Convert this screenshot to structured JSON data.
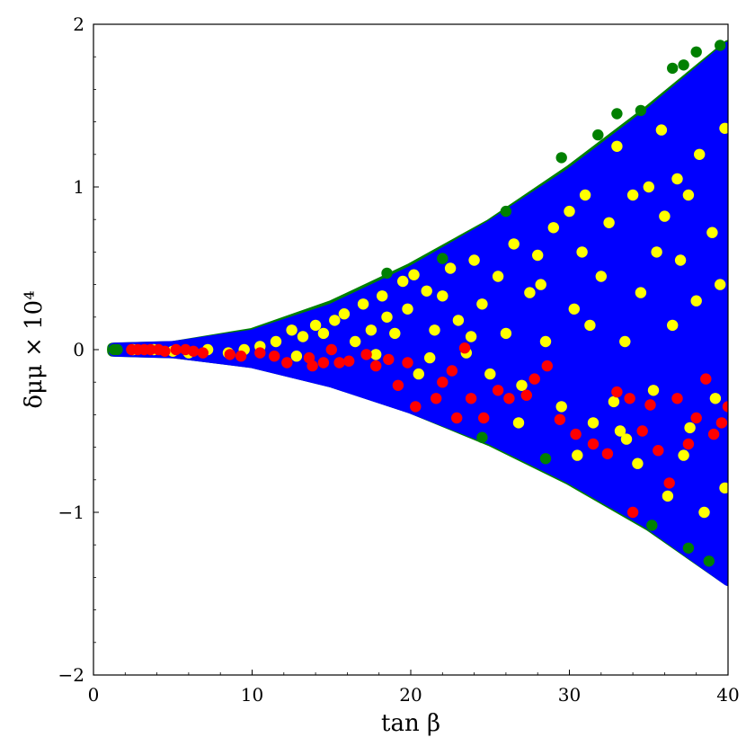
{
  "chart_data": {
    "type": "scatter",
    "xlabel": "tan β",
    "ylabel": "δμμ × 10⁴",
    "xlim": [
      0,
      40
    ],
    "ylim": [
      -2,
      2
    ],
    "x_ticks": [
      0,
      10,
      20,
      30,
      40
    ],
    "y_ticks": [
      -2,
      -1,
      0,
      1,
      2
    ],
    "x_tick_labels": [
      "0",
      "10",
      "20",
      "30",
      "40"
    ],
    "y_tick_labels": [
      "−2",
      "−1",
      "0",
      "1",
      "2"
    ],
    "grid": false,
    "legend": "none",
    "series": [
      {
        "color": "#008000",
        "envelope": true,
        "x_range": [
          1.2,
          40
        ],
        "upper_y_at_x": [
          [
            1.2,
            0.01
          ],
          [
            5,
            0.02
          ],
          [
            10,
            0.1
          ],
          [
            15,
            0.27
          ],
          [
            20,
            0.5
          ],
          [
            25,
            0.77
          ],
          [
            30,
            1.1
          ],
          [
            35,
            1.47
          ],
          [
            40,
            1.87
          ]
        ],
        "lower_y_at_x": [
          [
            1.2,
            -0.01
          ],
          [
            5,
            -0.02
          ],
          [
            10,
            -0.08
          ],
          [
            15,
            -0.2
          ],
          [
            20,
            -0.36
          ],
          [
            25,
            -0.56
          ],
          [
            30,
            -0.8
          ],
          [
            35,
            -1.08
          ],
          [
            40,
            -1.42
          ]
        ],
        "points": [
          [
            1.3,
            0.0
          ],
          [
            1.5,
            0.0
          ],
          [
            33.0,
            1.45
          ],
          [
            34.5,
            1.47
          ],
          [
            36.5,
            1.73
          ],
          [
            37.2,
            1.75
          ],
          [
            38.0,
            1.83
          ],
          [
            29.5,
            1.18
          ],
          [
            31.8,
            1.32
          ],
          [
            26.0,
            0.85
          ],
          [
            22.0,
            0.56
          ],
          [
            18.5,
            0.47
          ],
          [
            35.2,
            -1.08
          ],
          [
            37.5,
            -1.22
          ],
          [
            28.5,
            -0.67
          ],
          [
            24.5,
            -0.54
          ],
          [
            38.8,
            -1.3
          ],
          [
            39.5,
            1.87
          ]
        ]
      },
      {
        "color": "#0000ff",
        "envelope": true,
        "x_range": [
          1.3,
          40
        ],
        "upper_y_at_x": [
          [
            1.3,
            0.01
          ],
          [
            5,
            0.02
          ],
          [
            10,
            0.09
          ],
          [
            15,
            0.25
          ],
          [
            20,
            0.48
          ],
          [
            25,
            0.76
          ],
          [
            30,
            1.08
          ],
          [
            35,
            1.45
          ],
          [
            40,
            1.86
          ]
        ],
        "lower_y_at_x": [
          [
            1.3,
            -0.01
          ],
          [
            5,
            -0.02
          ],
          [
            10,
            -0.08
          ],
          [
            15,
            -0.2
          ],
          [
            20,
            -0.36
          ],
          [
            25,
            -0.55
          ],
          [
            30,
            -0.79
          ],
          [
            35,
            -1.07
          ],
          [
            40,
            -1.42
          ]
        ],
        "points": []
      },
      {
        "color": "#ffff00",
        "points": [
          [
            2.5,
            0.0
          ],
          [
            3.8,
            0.0
          ],
          [
            5.0,
            -0.01
          ],
          [
            6.0,
            -0.02
          ],
          [
            7.2,
            0.0
          ],
          [
            8.5,
            -0.02
          ],
          [
            9.5,
            0.0
          ],
          [
            10.5,
            0.02
          ],
          [
            11.5,
            0.05
          ],
          [
            12.5,
            0.12
          ],
          [
            12.8,
            -0.04
          ],
          [
            13.2,
            0.08
          ],
          [
            14.0,
            0.15
          ],
          [
            14.5,
            0.1
          ],
          [
            15.2,
            0.18
          ],
          [
            15.8,
            0.22
          ],
          [
            16.5,
            0.05
          ],
          [
            17.0,
            0.28
          ],
          [
            17.5,
            0.12
          ],
          [
            17.8,
            -0.03
          ],
          [
            18.2,
            0.33
          ],
          [
            18.5,
            0.2
          ],
          [
            19.0,
            0.1
          ],
          [
            19.5,
            0.42
          ],
          [
            19.8,
            0.25
          ],
          [
            20.2,
            0.46
          ],
          [
            20.5,
            -0.15
          ],
          [
            21.0,
            0.36
          ],
          [
            21.5,
            0.12
          ],
          [
            22.0,
            0.33
          ],
          [
            22.5,
            0.5
          ],
          [
            23.0,
            0.18
          ],
          [
            23.5,
            -0.02
          ],
          [
            24.0,
            0.55
          ],
          [
            24.5,
            0.28
          ],
          [
            25.0,
            -0.15
          ],
          [
            25.5,
            0.45
          ],
          [
            26.0,
            0.1
          ],
          [
            26.5,
            0.65
          ],
          [
            27.0,
            -0.22
          ],
          [
            27.5,
            0.35
          ],
          [
            28.0,
            0.58
          ],
          [
            28.5,
            0.05
          ],
          [
            29.0,
            0.75
          ],
          [
            29.5,
            -0.35
          ],
          [
            30.0,
            0.85
          ],
          [
            30.3,
            0.25
          ],
          [
            30.5,
            -0.65
          ],
          [
            31.0,
            0.95
          ],
          [
            31.3,
            0.15
          ],
          [
            31.5,
            -0.45
          ],
          [
            32.0,
            0.45
          ],
          [
            32.5,
            0.78
          ],
          [
            33.0,
            1.25
          ],
          [
            33.2,
            -0.5
          ],
          [
            33.5,
            0.05
          ],
          [
            34.0,
            0.95
          ],
          [
            34.3,
            -0.7
          ],
          [
            34.5,
            0.35
          ],
          [
            35.0,
            1.0
          ],
          [
            35.3,
            -0.25
          ],
          [
            35.5,
            0.6
          ],
          [
            36.0,
            0.82
          ],
          [
            36.2,
            -0.9
          ],
          [
            36.5,
            0.15
          ],
          [
            37.0,
            0.55
          ],
          [
            37.2,
            -0.65
          ],
          [
            37.5,
            0.95
          ],
          [
            38.0,
            0.3
          ],
          [
            38.2,
            1.2
          ],
          [
            38.5,
            -1.0
          ],
          [
            39.0,
            0.72
          ],
          [
            39.2,
            -0.3
          ],
          [
            39.5,
            0.4
          ],
          [
            39.8,
            1.36
          ],
          [
            39.8,
            -0.85
          ],
          [
            26.8,
            -0.45
          ],
          [
            28.2,
            0.4
          ],
          [
            23.8,
            0.08
          ],
          [
            21.2,
            -0.05
          ],
          [
            35.8,
            1.35
          ],
          [
            33.6,
            -0.55
          ],
          [
            37.6,
            -0.48
          ],
          [
            36.8,
            1.05
          ],
          [
            30.8,
            0.6
          ],
          [
            32.8,
            -0.32
          ]
        ]
      },
      {
        "color": "#ff0000",
        "points": [
          [
            2.4,
            0.0
          ],
          [
            2.8,
            0.0
          ],
          [
            3.2,
            0.0
          ],
          [
            3.6,
            0.0
          ],
          [
            4.1,
            0.0
          ],
          [
            4.5,
            -0.01
          ],
          [
            5.2,
            0.0
          ],
          [
            5.8,
            0.0
          ],
          [
            6.3,
            -0.01
          ],
          [
            6.9,
            -0.02
          ],
          [
            8.6,
            -0.03
          ],
          [
            9.3,
            -0.04
          ],
          [
            10.5,
            -0.02
          ],
          [
            11.4,
            -0.04
          ],
          [
            12.2,
            -0.08
          ],
          [
            13.6,
            -0.05
          ],
          [
            13.8,
            -0.1
          ],
          [
            14.5,
            -0.08
          ],
          [
            15.0,
            0.0
          ],
          [
            15.5,
            -0.08
          ],
          [
            16.1,
            -0.07
          ],
          [
            17.2,
            -0.03
          ],
          [
            17.8,
            -0.1
          ],
          [
            18.6,
            -0.06
          ],
          [
            19.2,
            -0.22
          ],
          [
            19.8,
            -0.08
          ],
          [
            20.3,
            -0.35
          ],
          [
            21.6,
            -0.3
          ],
          [
            22.0,
            -0.2
          ],
          [
            22.6,
            -0.13
          ],
          [
            22.9,
            -0.42
          ],
          [
            23.4,
            0.01
          ],
          [
            23.8,
            -0.3
          ],
          [
            24.6,
            -0.42
          ],
          [
            25.5,
            -0.25
          ],
          [
            26.2,
            -0.3
          ],
          [
            27.3,
            -0.28
          ],
          [
            27.8,
            -0.18
          ],
          [
            28.6,
            -0.1
          ],
          [
            29.4,
            -0.43
          ],
          [
            30.4,
            -0.52
          ],
          [
            31.5,
            -0.58
          ],
          [
            32.4,
            -0.64
          ],
          [
            33.0,
            -0.26
          ],
          [
            33.8,
            -0.3
          ],
          [
            34.0,
            -1.0
          ],
          [
            34.6,
            -0.5
          ],
          [
            35.1,
            -0.34
          ],
          [
            35.6,
            -0.62
          ],
          [
            36.3,
            -0.82
          ],
          [
            36.8,
            -0.3
          ],
          [
            37.5,
            -0.58
          ],
          [
            38.0,
            -0.42
          ],
          [
            38.6,
            -0.18
          ],
          [
            39.1,
            -0.52
          ],
          [
            39.6,
            -0.45
          ],
          [
            40.0,
            -0.35
          ]
        ]
      }
    ]
  }
}
